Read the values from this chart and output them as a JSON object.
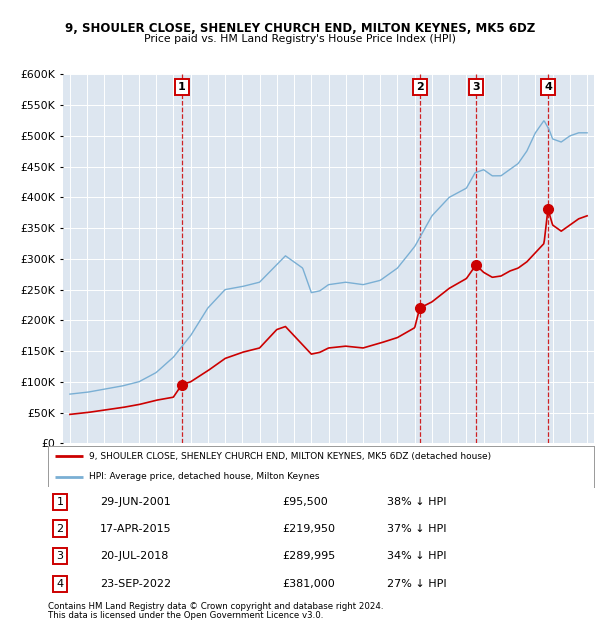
{
  "title": "9, SHOULER CLOSE, SHENLEY CHURCH END, MILTON KEYNES, MK5 6DZ",
  "subtitle": "Price paid vs. HM Land Registry's House Price Index (HPI)",
  "plot_bg_color": "#dde6f0",
  "ylim": [
    0,
    600000
  ],
  "yticks": [
    0,
    50000,
    100000,
    150000,
    200000,
    250000,
    300000,
    350000,
    400000,
    450000,
    500000,
    550000,
    600000
  ],
  "xlim_start": 1994.6,
  "xlim_end": 2025.4,
  "red_line_color": "#cc0000",
  "blue_line_color": "#7aafd4",
  "sale_marker_color": "#cc0000",
  "dashed_line_color": "#cc0000",
  "sales": [
    {
      "num": 1,
      "date_dec": 2001.49,
      "price": 95500,
      "label": "1"
    },
    {
      "num": 2,
      "date_dec": 2015.29,
      "price": 219950,
      "label": "2"
    },
    {
      "num": 3,
      "date_dec": 2018.55,
      "price": 289995,
      "label": "3"
    },
    {
      "num": 4,
      "date_dec": 2022.73,
      "price": 381000,
      "label": "4"
    }
  ],
  "legend_entries": [
    "9, SHOULER CLOSE, SHENLEY CHURCH END, MILTON KEYNES, MK5 6DZ (detached house)",
    "HPI: Average price, detached house, Milton Keynes"
  ],
  "table": [
    {
      "num": 1,
      "date": "29-JUN-2001",
      "price": "£95,500",
      "pct": "38% ↓ HPI"
    },
    {
      "num": 2,
      "date": "17-APR-2015",
      "price": "£219,950",
      "pct": "37% ↓ HPI"
    },
    {
      "num": 3,
      "date": "20-JUL-2018",
      "price": "£289,995",
      "pct": "34% ↓ HPI"
    },
    {
      "num": 4,
      "date": "23-SEP-2022",
      "price": "£381,000",
      "pct": "27% ↓ HPI"
    }
  ],
  "footnote1": "Contains HM Land Registry data © Crown copyright and database right 2024.",
  "footnote2": "This data is licensed under the Open Government Licence v3.0.",
  "hpi_keypoints": [
    [
      1995.0,
      80000
    ],
    [
      1996.0,
      83000
    ],
    [
      1997.0,
      88000
    ],
    [
      1998.0,
      93000
    ],
    [
      1999.0,
      100000
    ],
    [
      2000.0,
      115000
    ],
    [
      2001.0,
      140000
    ],
    [
      2002.0,
      175000
    ],
    [
      2003.0,
      220000
    ],
    [
      2004.0,
      250000
    ],
    [
      2005.0,
      255000
    ],
    [
      2006.0,
      262000
    ],
    [
      2007.5,
      305000
    ],
    [
      2008.5,
      285000
    ],
    [
      2009.0,
      245000
    ],
    [
      2009.5,
      248000
    ],
    [
      2010.0,
      258000
    ],
    [
      2011.0,
      262000
    ],
    [
      2012.0,
      258000
    ],
    [
      2013.0,
      265000
    ],
    [
      2014.0,
      285000
    ],
    [
      2015.0,
      320000
    ],
    [
      2016.0,
      370000
    ],
    [
      2017.0,
      400000
    ],
    [
      2018.0,
      415000
    ],
    [
      2018.5,
      440000
    ],
    [
      2019.0,
      445000
    ],
    [
      2019.5,
      435000
    ],
    [
      2020.0,
      435000
    ],
    [
      2020.5,
      445000
    ],
    [
      2021.0,
      455000
    ],
    [
      2021.5,
      475000
    ],
    [
      2022.0,
      505000
    ],
    [
      2022.5,
      525000
    ],
    [
      2022.8,
      510000
    ],
    [
      2023.0,
      495000
    ],
    [
      2023.5,
      490000
    ],
    [
      2024.0,
      500000
    ],
    [
      2024.5,
      505000
    ],
    [
      2025.0,
      505000
    ]
  ],
  "red_keypoints": [
    [
      1995.0,
      47000
    ],
    [
      1996.0,
      50000
    ],
    [
      1997.0,
      54000
    ],
    [
      1998.0,
      58000
    ],
    [
      1999.0,
      63000
    ],
    [
      2000.0,
      70000
    ],
    [
      2001.0,
      75000
    ],
    [
      2001.49,
      95500
    ],
    [
      2002.0,
      100000
    ],
    [
      2003.0,
      118000
    ],
    [
      2004.0,
      138000
    ],
    [
      2005.0,
      148000
    ],
    [
      2006.0,
      155000
    ],
    [
      2007.0,
      185000
    ],
    [
      2007.5,
      190000
    ],
    [
      2008.5,
      160000
    ],
    [
      2009.0,
      145000
    ],
    [
      2009.5,
      148000
    ],
    [
      2010.0,
      155000
    ],
    [
      2011.0,
      158000
    ],
    [
      2012.0,
      155000
    ],
    [
      2013.0,
      163000
    ],
    [
      2014.0,
      172000
    ],
    [
      2015.0,
      188000
    ],
    [
      2015.29,
      219950
    ],
    [
      2016.0,
      230000
    ],
    [
      2017.0,
      252000
    ],
    [
      2018.0,
      268000
    ],
    [
      2018.55,
      289995
    ],
    [
      2019.0,
      278000
    ],
    [
      2019.5,
      270000
    ],
    [
      2020.0,
      272000
    ],
    [
      2020.5,
      280000
    ],
    [
      2021.0,
      285000
    ],
    [
      2021.5,
      295000
    ],
    [
      2022.0,
      310000
    ],
    [
      2022.5,
      325000
    ],
    [
      2022.73,
      381000
    ],
    [
      2023.0,
      355000
    ],
    [
      2023.5,
      345000
    ],
    [
      2024.0,
      355000
    ],
    [
      2024.5,
      365000
    ],
    [
      2025.0,
      370000
    ]
  ]
}
